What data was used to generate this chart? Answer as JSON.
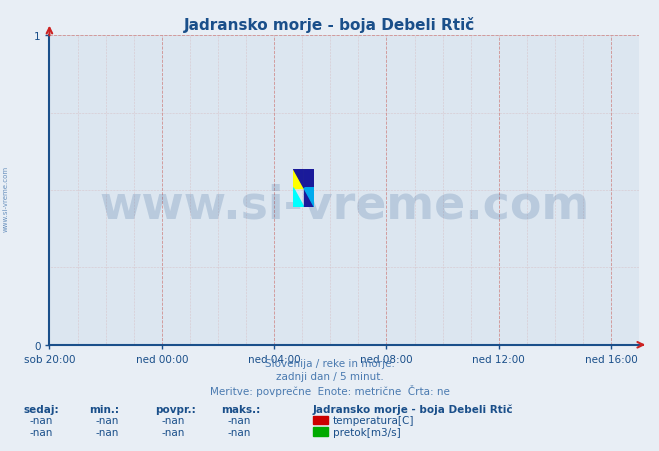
{
  "title": "Jadransko morje - boja Debeli Rtič",
  "title_color": "#1a4f8a",
  "background_color": "#e8eef5",
  "plot_bg_color": "#dce6f0",
  "x_labels": [
    "sob 20:00",
    "ned 00:00",
    "ned 04:00",
    "ned 08:00",
    "ned 12:00",
    "ned 16:00"
  ],
  "x_tick_positions": [
    0,
    4,
    8,
    12,
    16,
    20
  ],
  "xlim": [
    0,
    21
  ],
  "ylim": [
    0,
    1
  ],
  "y_ticks": [
    0,
    1
  ],
  "axis_color": "#1a4f8a",
  "tick_color": "#1a4f8a",
  "grid_color": "#d09090",
  "grid_minor_color": "#d0b0b0",
  "watermark_text": "www.si-vreme.com",
  "watermark_color": "#1a4f8a",
  "watermark_fontsize": 36,
  "side_text": "www.si-vreme.com",
  "side_color": "#4a7ab0",
  "info_line1": "Slovenija / reke in morje.",
  "info_line2": "zadnji dan / 5 minut.",
  "info_line3": "Meritve: povprečne  Enote: metrične  Črta: ne",
  "info_color": "#4a7ab0",
  "legend_title": "Jadransko morje - boja Debeli Rtič",
  "legend_title_color": "#1a4f8a",
  "legend_items": [
    {
      "label": "temperatura[C]",
      "color": "#cc0000"
    },
    {
      "label": "pretok[m3/s]",
      "color": "#00aa00"
    }
  ],
  "stats_headers": [
    "sedaj:",
    "min.:",
    "povpr.:",
    "maks.:"
  ],
  "stats_values": [
    "-nan",
    "-nan",
    "-nan",
    "-nan"
  ],
  "stats_color": "#1a4f8a"
}
